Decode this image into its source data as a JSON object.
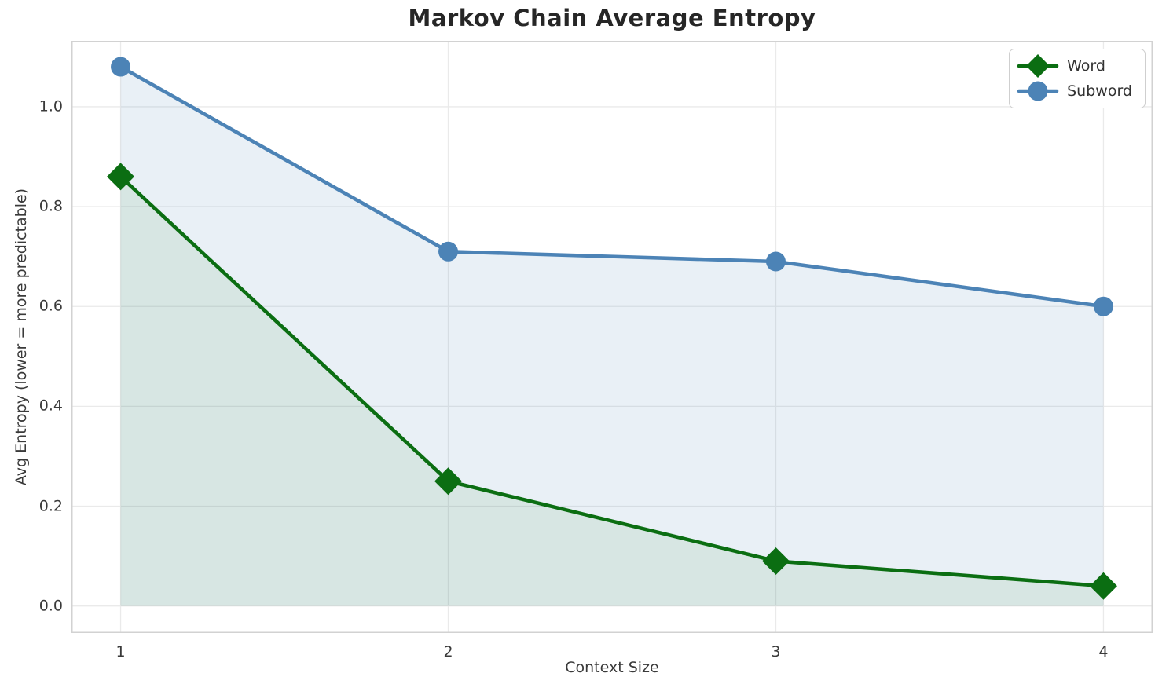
{
  "chart_data": {
    "type": "line",
    "title": "Markov Chain Average Entropy",
    "xlabel": "Context Size",
    "ylabel": "Avg Entropy (lower = more predictable)",
    "x": [
      1,
      2,
      3,
      4
    ],
    "series": [
      {
        "name": "Word",
        "values": [
          0.86,
          0.25,
          0.09,
          0.04
        ],
        "color": "#0b6e12",
        "marker": "diamond",
        "fill_to_zero": true,
        "fill_color": "rgba(11,110,18,0.08)"
      },
      {
        "name": "Subword",
        "values": [
          1.08,
          0.71,
          0.69,
          0.6
        ],
        "color": "#4c83b6",
        "marker": "circle",
        "fill_to_zero": true,
        "fill_color": "rgba(70,130,180,0.12)"
      }
    ],
    "xticks": [
      "1",
      "2",
      "3",
      "4"
    ],
    "yticks": [
      "0.0",
      "0.2",
      "0.4",
      "0.6",
      "0.8",
      "1.0"
    ],
    "xlim": [
      0.85,
      4.15
    ],
    "ylim": [
      -0.054,
      1.132
    ],
    "grid": true,
    "grid_color": "#eaeaea",
    "spine_color": "#d2d2d2",
    "legend_position": "upper right"
  }
}
